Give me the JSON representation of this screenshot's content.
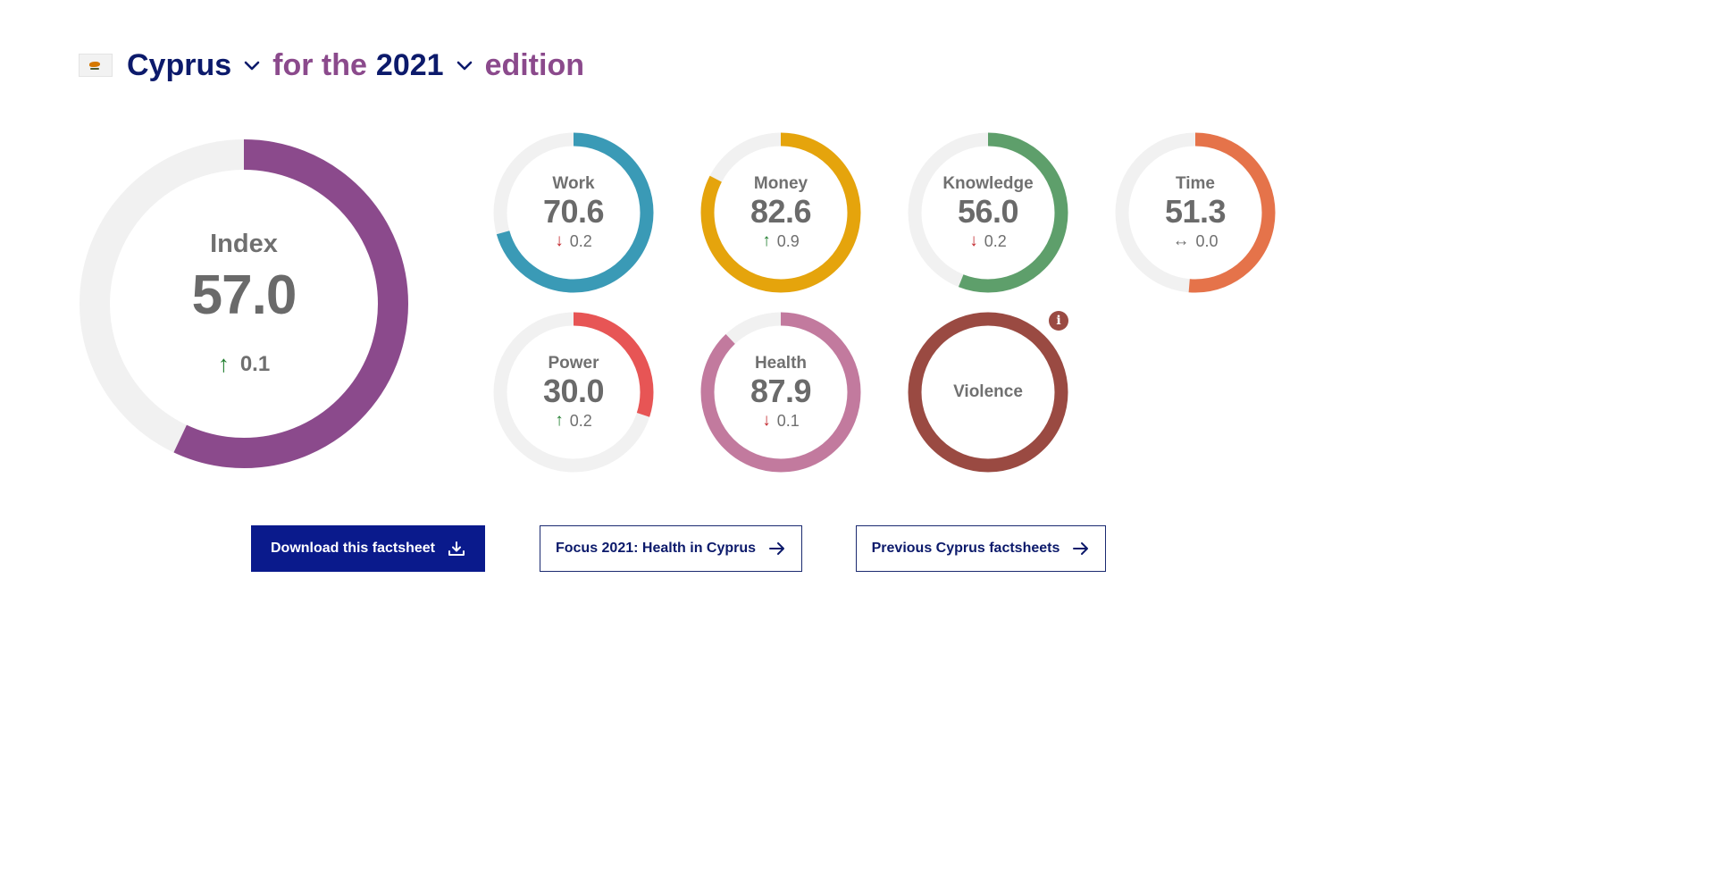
{
  "header": {
    "flag_icon": "cyprus-flag-icon",
    "country": "Cyprus",
    "connector": "for the",
    "year": "2021",
    "suffix": "edition"
  },
  "index": {
    "label": "Index",
    "score": "57.0",
    "change": "0.1",
    "direction": "up",
    "value": 57.0,
    "color": "#8b4a8c"
  },
  "domains": [
    {
      "key": "work",
      "label": "Work",
      "score": "70.6",
      "change": "0.2",
      "direction": "down",
      "value": 70.6,
      "color": "#3a9ab6"
    },
    {
      "key": "money",
      "label": "Money",
      "score": "82.6",
      "change": "0.9",
      "direction": "up",
      "value": 82.6,
      "color": "#e5a40c"
    },
    {
      "key": "knowledge",
      "label": "Knowledge",
      "score": "56.0",
      "change": "0.2",
      "direction": "down",
      "value": 56.0,
      "color": "#5e9f6b"
    },
    {
      "key": "time",
      "label": "Time",
      "score": "51.3",
      "change": "0.0",
      "direction": "flat",
      "value": 51.3,
      "color": "#e5734a"
    },
    {
      "key": "power",
      "label": "Power",
      "score": "30.0",
      "change": "0.2",
      "direction": "up",
      "value": 30.0,
      "color": "#e75555"
    },
    {
      "key": "health",
      "label": "Health",
      "score": "87.9",
      "change": "0.1",
      "direction": "down",
      "value": 87.9,
      "color": "#c27a9e"
    },
    {
      "key": "violence",
      "label": "Violence",
      "value": 100,
      "color": "#9a4a42"
    }
  ],
  "buttons": {
    "download": "Download this factsheet",
    "focus": "Focus 2021: Health in Cyprus",
    "previous": "Previous Cyprus factsheets"
  },
  "colors": {
    "navy": "#0c1a6b",
    "primary_button": "#0a1a8c",
    "track": "#f1f1f1",
    "up": "#1e7d2c",
    "down": "#c2272d"
  }
}
